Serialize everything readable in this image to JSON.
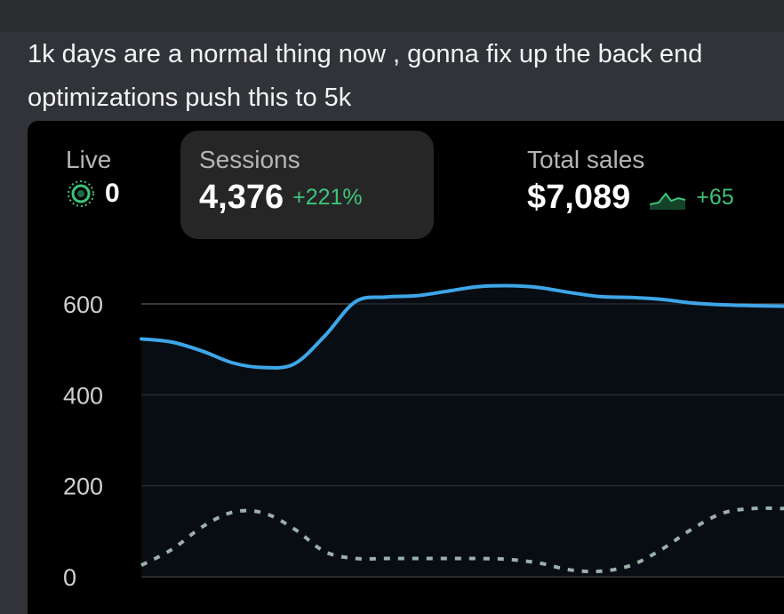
{
  "message": {
    "lines": [
      "1k days are a normal thing now , gonna fix up the back end",
      "optimizations push this to 5k"
    ]
  },
  "embed": {
    "live": {
      "label": "Live",
      "value": "0",
      "icon": "live-pulse-icon"
    },
    "sessions": {
      "label": "Sessions",
      "value": "4,376",
      "change": "+221%"
    },
    "total_sales": {
      "label": "Total sales",
      "value": "$7,089",
      "change": "+65",
      "icon": "sparkline-icon"
    }
  },
  "colors": {
    "primary_line": "#3ea6e8",
    "comparison_line": "#9ab0a8",
    "positive": "#3ec47a",
    "grid": "#4a4a4a"
  },
  "chart_data": {
    "type": "line",
    "title": "",
    "xlabel": "",
    "ylabel": "",
    "ylim": [
      0,
      600
    ],
    "y_ticks": [
      0,
      200,
      400,
      600
    ],
    "x": [
      0,
      1,
      2,
      3,
      4,
      5,
      6,
      7,
      8,
      9,
      10,
      11,
      12,
      13,
      14,
      15,
      16,
      17,
      18,
      19,
      20,
      21
    ],
    "series": [
      {
        "style": "solid",
        "values": [
          523,
          516,
          496,
          470,
          460,
          468,
          530,
          605,
          615,
          618,
          628,
          638,
          640,
          636,
          625,
          616,
          614,
          610,
          602,
          598,
          596,
          595
        ]
      },
      {
        "style": "dashed",
        "values": [
          25,
          60,
          110,
          142,
          140,
          105,
          55,
          40,
          40,
          40,
          40,
          40,
          38,
          30,
          15,
          12,
          25,
          60,
          105,
          140,
          150,
          150
        ]
      }
    ]
  }
}
